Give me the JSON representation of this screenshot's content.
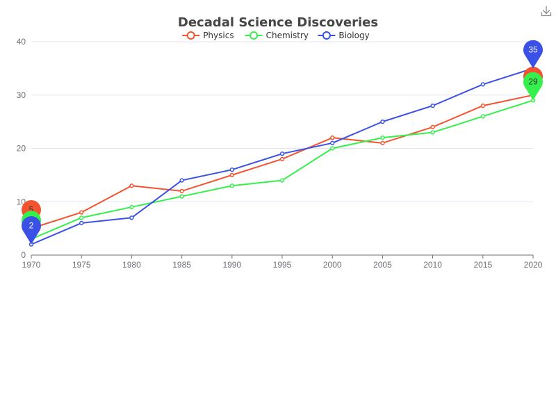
{
  "chart_data": {
    "type": "line",
    "title": "Decadal Science Discoveries",
    "x": [
      "1970",
      "1975",
      "1980",
      "1985",
      "1990",
      "1995",
      "2000",
      "2005",
      "2010",
      "2015",
      "2020"
    ],
    "series": [
      {
        "name": "Physics",
        "color": "#f4532f",
        "values": [
          5,
          8,
          13,
          12,
          15,
          18,
          22,
          21,
          24,
          28,
          30
        ]
      },
      {
        "name": "Chemistry",
        "color": "#35f04b",
        "values": [
          3,
          7,
          9,
          11,
          13,
          14,
          20,
          22,
          23,
          26,
          29
        ]
      },
      {
        "name": "Biology",
        "color": "#3a50e6",
        "values": [
          2,
          6,
          7,
          14,
          16,
          19,
          21,
          25,
          28,
          32,
          35
        ]
      }
    ],
    "ylim": [
      0,
      40
    ],
    "yticks": [
      0,
      10,
      20,
      30,
      40
    ],
    "grid": true,
    "legend_position": "top-center",
    "markers": "min and max value pins per series"
  },
  "toolbox": {
    "icon": "download-icon"
  }
}
